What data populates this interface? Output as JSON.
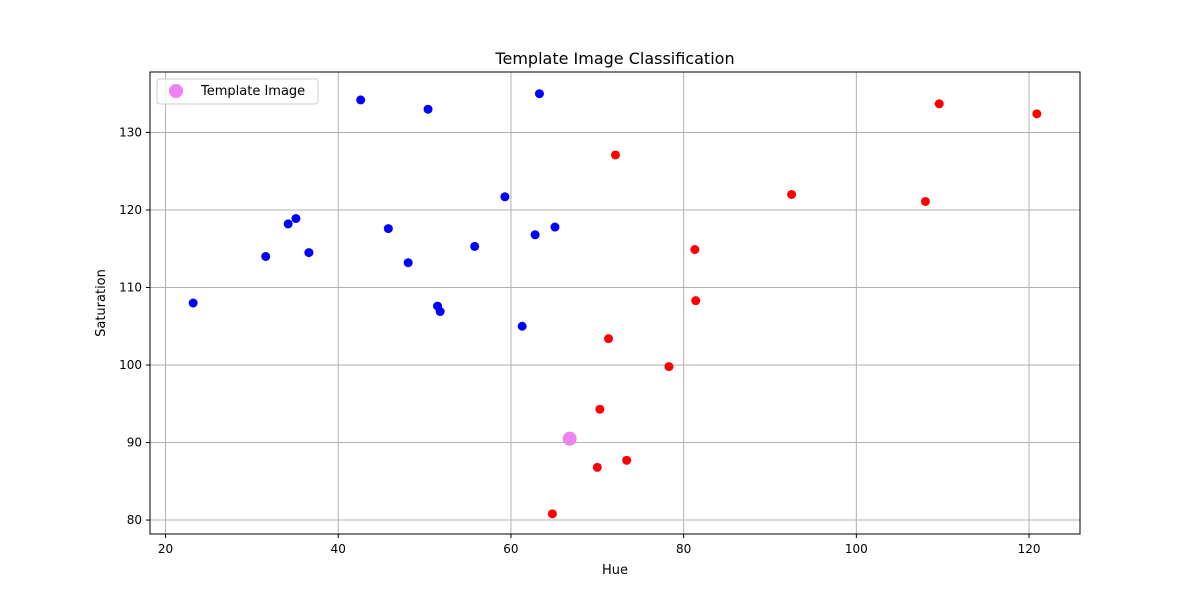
{
  "chart_data": {
    "type": "scatter",
    "title": "Template Image Classification",
    "xlabel": "Hue",
    "ylabel": "Saturation",
    "xlim": [
      18.2,
      125.9
    ],
    "ylim": [
      78.2,
      137.8
    ],
    "xticks": [
      20,
      40,
      60,
      80,
      100,
      120
    ],
    "yticks": [
      80,
      90,
      100,
      110,
      120,
      130
    ],
    "grid": true,
    "legend_position": "top-left",
    "legend": [
      {
        "label": "Template Image",
        "color": "#ee82ee"
      }
    ],
    "series": [
      {
        "color": "#0000ff",
        "points": [
          [
            23.2,
            108.0
          ],
          [
            31.6,
            114.0
          ],
          [
            34.2,
            118.2
          ],
          [
            35.1,
            118.9
          ],
          [
            36.6,
            114.5
          ],
          [
            42.6,
            134.2
          ],
          [
            45.8,
            117.6
          ],
          [
            48.1,
            113.2
          ],
          [
            50.4,
            133.0
          ],
          [
            51.5,
            107.6
          ],
          [
            51.8,
            106.9
          ],
          [
            55.8,
            115.3
          ],
          [
            59.3,
            121.7
          ],
          [
            61.3,
            105.0
          ],
          [
            62.8,
            116.8
          ],
          [
            63.3,
            135.0
          ],
          [
            65.1,
            117.8
          ]
        ]
      },
      {
        "color": "#ff0000",
        "points": [
          [
            64.8,
            80.8
          ],
          [
            70.0,
            86.8
          ],
          [
            70.3,
            94.3
          ],
          [
            71.3,
            103.4
          ],
          [
            72.1,
            127.1
          ],
          [
            73.4,
            87.7
          ],
          [
            78.3,
            99.8
          ],
          [
            81.3,
            114.9
          ],
          [
            81.4,
            108.3
          ],
          [
            92.5,
            122.0
          ],
          [
            108.0,
            121.1
          ],
          [
            109.6,
            133.7
          ],
          [
            120.9,
            132.4
          ]
        ]
      },
      {
        "name": "Template Image",
        "color": "#ee82ee",
        "points": [
          [
            66.8,
            90.5
          ]
        ]
      }
    ]
  }
}
